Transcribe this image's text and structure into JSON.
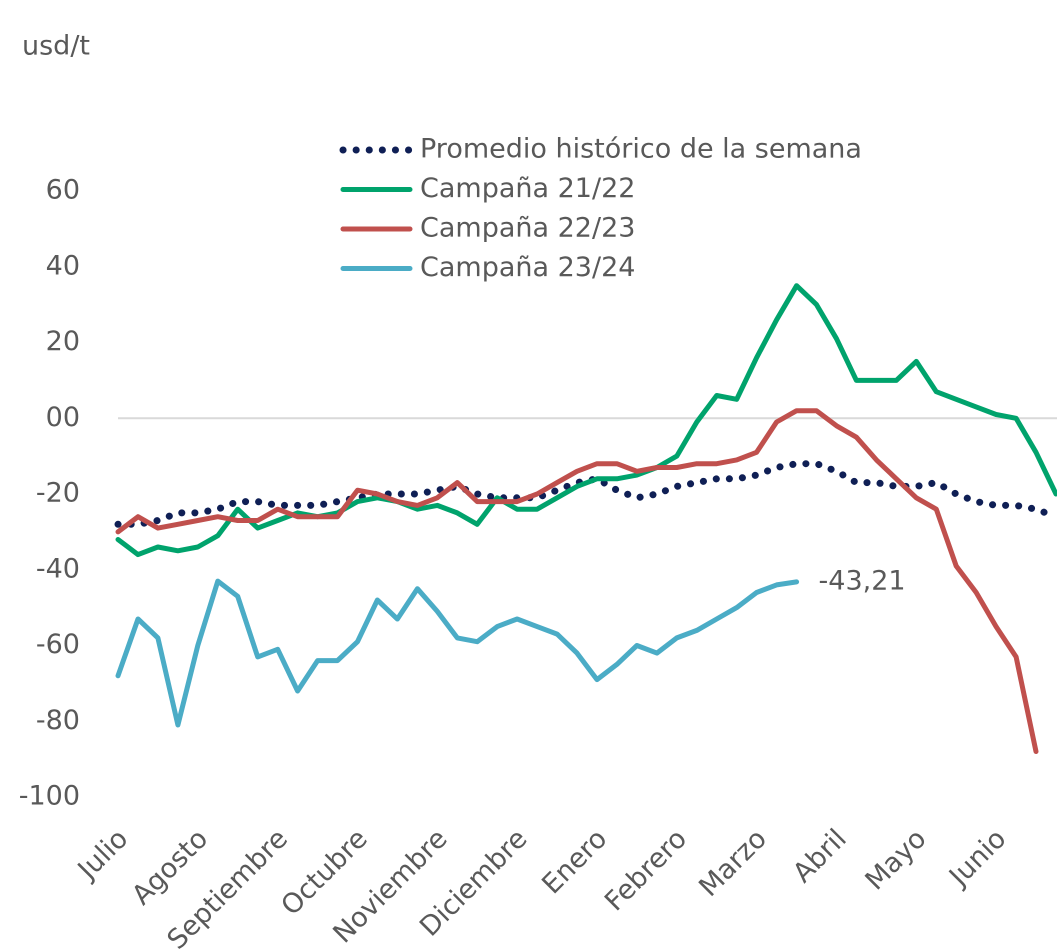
{
  "chart_data": {
    "type": "line",
    "y_label": "usd/t",
    "categories": [
      "Julio",
      null,
      null,
      null,
      "Agosto",
      null,
      null,
      null,
      "Septiembre",
      null,
      null,
      null,
      "Octubre",
      null,
      null,
      null,
      "Noviembre",
      null,
      null,
      null,
      "Diciembre",
      null,
      null,
      null,
      "Enero",
      null,
      null,
      null,
      "Febrero",
      null,
      null,
      null,
      "Marzo",
      null,
      null,
      null,
      "Abril",
      null,
      null,
      null,
      "Mayo",
      null,
      null,
      null,
      "Junio",
      null,
      null,
      null
    ],
    "series": [
      {
        "name": "Promedio histórico de la semana",
        "color": "#0f1f55",
        "dotted": true,
        "values": [
          -28,
          -28,
          -27,
          -25,
          -25,
          -24,
          -22,
          -22,
          -23,
          -23,
          -23,
          -22,
          -21,
          -20,
          -20,
          -20,
          -19,
          -18,
          -20,
          -21,
          -21,
          -21,
          -19,
          -17,
          -16,
          -19,
          -21,
          -20,
          -18,
          -17,
          -16,
          -16,
          -15,
          -13,
          -12,
          -12,
          -14,
          -17,
          -17,
          -18,
          -18,
          -17,
          -20,
          -22,
          -23,
          -23,
          -24,
          -26
        ]
      },
      {
        "name": "Campaña 21/22",
        "color": "#00a36c",
        "values": [
          -32,
          -36,
          -34,
          -35,
          -34,
          -31,
          -24,
          -29,
          -27,
          -25,
          -26,
          -25,
          -22,
          -21,
          -22,
          -24,
          -23,
          -25,
          -28,
          -21,
          -24,
          -24,
          -21,
          -18,
          -16,
          -16,
          -15,
          -13,
          -10,
          -1,
          6,
          5,
          16,
          26,
          35,
          30,
          21,
          10,
          10,
          10,
          15,
          7,
          5,
          3,
          1,
          0,
          -9,
          -20
        ]
      },
      {
        "name": "Campaña 22/23",
        "color": "#c0504d",
        "values": [
          -30,
          -26,
          -29,
          -28,
          -27,
          -26,
          -27,
          -27,
          -24,
          -26,
          -26,
          -26,
          -19,
          -20,
          -22,
          -23,
          -21,
          -17,
          -22,
          -22,
          -22,
          -20,
          -17,
          -14,
          -12,
          -12,
          -14,
          -13,
          -13,
          -12,
          -12,
          -11,
          -9,
          -1,
          2,
          2,
          -2,
          -5,
          -11,
          -16,
          -21,
          -24,
          -39,
          -46,
          -55,
          -63,
          -88,
          null
        ]
      },
      {
        "name": "Campaña 23/24",
        "color": "#4bacc6",
        "values": [
          -68,
          -53,
          -58,
          -81,
          -60,
          -43,
          -47,
          -63,
          -61,
          -72,
          -64,
          -64,
          -59,
          -48,
          -53,
          -45,
          -51,
          -58,
          -59,
          -55,
          -53,
          -55,
          -57,
          -62,
          -69,
          -65,
          -60,
          -62,
          -58,
          -56,
          -53,
          -50,
          -46,
          -44,
          -43.21,
          null,
          null,
          null,
          null,
          null,
          null,
          null,
          null,
          null,
          null,
          null,
          null,
          null
        ],
        "value_labels": [
          null,
          null,
          null,
          null,
          null,
          null,
          null,
          null,
          null,
          null,
          null,
          null,
          null,
          null,
          null,
          null,
          null,
          null,
          null,
          null,
          null,
          null,
          null,
          null,
          null,
          null,
          null,
          null,
          null,
          null,
          null,
          null,
          null,
          null,
          "-43,21",
          null,
          null,
          null,
          null,
          null,
          null,
          null,
          null,
          null,
          null,
          null,
          null,
          null
        ]
      }
    ],
    "ylim": [
      -100,
      60
    ],
    "yticks": [
      -100,
      -80,
      -60,
      -40,
      -20,
      {
        "value": 0,
        "label": "00"
      },
      20,
      40,
      60
    ],
    "legend": "top"
  }
}
